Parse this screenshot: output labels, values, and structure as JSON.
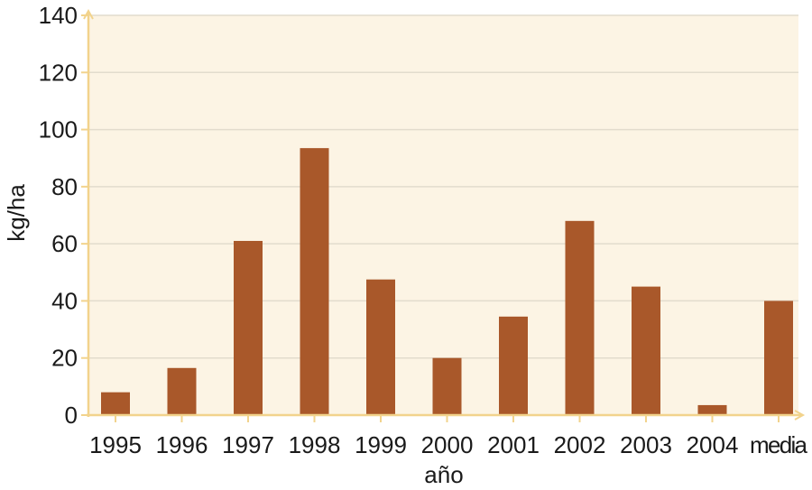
{
  "chart_data": {
    "type": "bar",
    "title": "",
    "xlabel": "año",
    "ylabel": "kg/ha",
    "categories": [
      "1995",
      "1996",
      "1997",
      "1998",
      "1999",
      "2000",
      "2001",
      "2002",
      "2003",
      "2004",
      "media"
    ],
    "values": [
      8,
      16.5,
      61,
      93.5,
      47.5,
      20,
      34.5,
      68,
      45,
      3.5,
      40
    ],
    "ylim": [
      0,
      140
    ],
    "yticks": [
      0,
      20,
      40,
      60,
      80,
      100,
      120,
      140
    ],
    "grid": true,
    "colors": {
      "bar": "#a9582a",
      "plot_background": "#fcf4e4",
      "grid": "#e2dccd",
      "axis": "#f2d38c"
    }
  }
}
